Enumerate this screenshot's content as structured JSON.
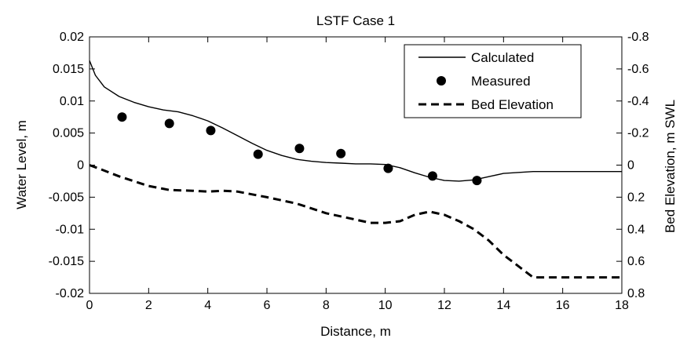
{
  "chart_data": {
    "type": "line",
    "title": "LSTF Case 1",
    "xlabel": "Distance, m",
    "ylabel": "Water Level, m",
    "y2label": "Bed Elevation, m SWL",
    "xlim": [
      0,
      18
    ],
    "ylim": [
      -0.02,
      0.02
    ],
    "y2lim": [
      0.8,
      -0.8
    ],
    "y2_reversed": true,
    "x_ticks": [
      "0",
      "2",
      "4",
      "6",
      "8",
      "10",
      "12",
      "14",
      "16",
      "18"
    ],
    "y_ticks": [
      "-0.02",
      "-0.015",
      "-0.01",
      "-0.005",
      "0",
      "0.005",
      "0.01",
      "0.015",
      "0.02"
    ],
    "y2_ticks": [
      "0.8",
      "0.6",
      "0.4",
      "0.2",
      "0",
      "-0.2",
      "-0.4",
      "-0.6",
      "-0.8"
    ],
    "grid": false,
    "legend_position": "top-right",
    "series": [
      {
        "name": "Calculated",
        "axis": "left",
        "style": "solid-line",
        "color": "#000000",
        "x": [
          0,
          0.2,
          0.5,
          1.0,
          1.5,
          2.0,
          2.5,
          3.0,
          3.5,
          4.0,
          4.5,
          5.0,
          5.5,
          6.0,
          6.5,
          7.0,
          7.5,
          8.0,
          8.5,
          9.0,
          9.5,
          10.0,
          10.5,
          11.0,
          11.5,
          12.0,
          12.5,
          13.0,
          13.5,
          14.0,
          15.0,
          16.0,
          17.0,
          18.0
        ],
        "y": [
          0.0163,
          0.014,
          0.0122,
          0.0107,
          0.0098,
          0.0091,
          0.0086,
          0.0083,
          0.0077,
          0.0069,
          0.0058,
          0.0046,
          0.0034,
          0.0023,
          0.0015,
          0.0009,
          0.0006,
          0.0004,
          0.0003,
          0.0002,
          0.0002,
          0.0001,
          -0.0004,
          -0.0012,
          -0.0019,
          -0.0024,
          -0.0025,
          -0.0023,
          -0.0018,
          -0.0013,
          -0.001,
          -0.001,
          -0.001,
          -0.001
        ]
      },
      {
        "name": "Measured",
        "axis": "left",
        "style": "markers",
        "color": "#000000",
        "x": [
          1.1,
          2.7,
          4.1,
          5.7,
          7.1,
          8.5,
          10.1,
          11.6,
          13.1
        ],
        "y": [
          0.0075,
          0.0065,
          0.0054,
          0.0017,
          0.0026,
          0.0018,
          -0.0005,
          -0.0017,
          -0.0024
        ]
      },
      {
        "name": "Bed Elevation",
        "axis": "right",
        "style": "dashed-line",
        "color": "#000000",
        "x": [
          0,
          0.3,
          1.0,
          2.0,
          2.7,
          3.5,
          4.0,
          4.5,
          5.0,
          6.0,
          7.0,
          8.0,
          9.0,
          9.5,
          10.0,
          10.5,
          11.0,
          11.5,
          12.0,
          12.5,
          13.0,
          13.5,
          14.0,
          14.5,
          15.0,
          16.0,
          17.0,
          18.0
        ],
        "y": [
          0.0,
          0.02,
          0.07,
          0.13,
          0.155,
          0.16,
          0.165,
          0.16,
          0.165,
          0.2,
          0.24,
          0.3,
          0.34,
          0.36,
          0.36,
          0.35,
          0.31,
          0.29,
          0.31,
          0.35,
          0.4,
          0.47,
          0.56,
          0.63,
          0.7,
          0.7,
          0.7,
          0.7
        ]
      }
    ]
  }
}
